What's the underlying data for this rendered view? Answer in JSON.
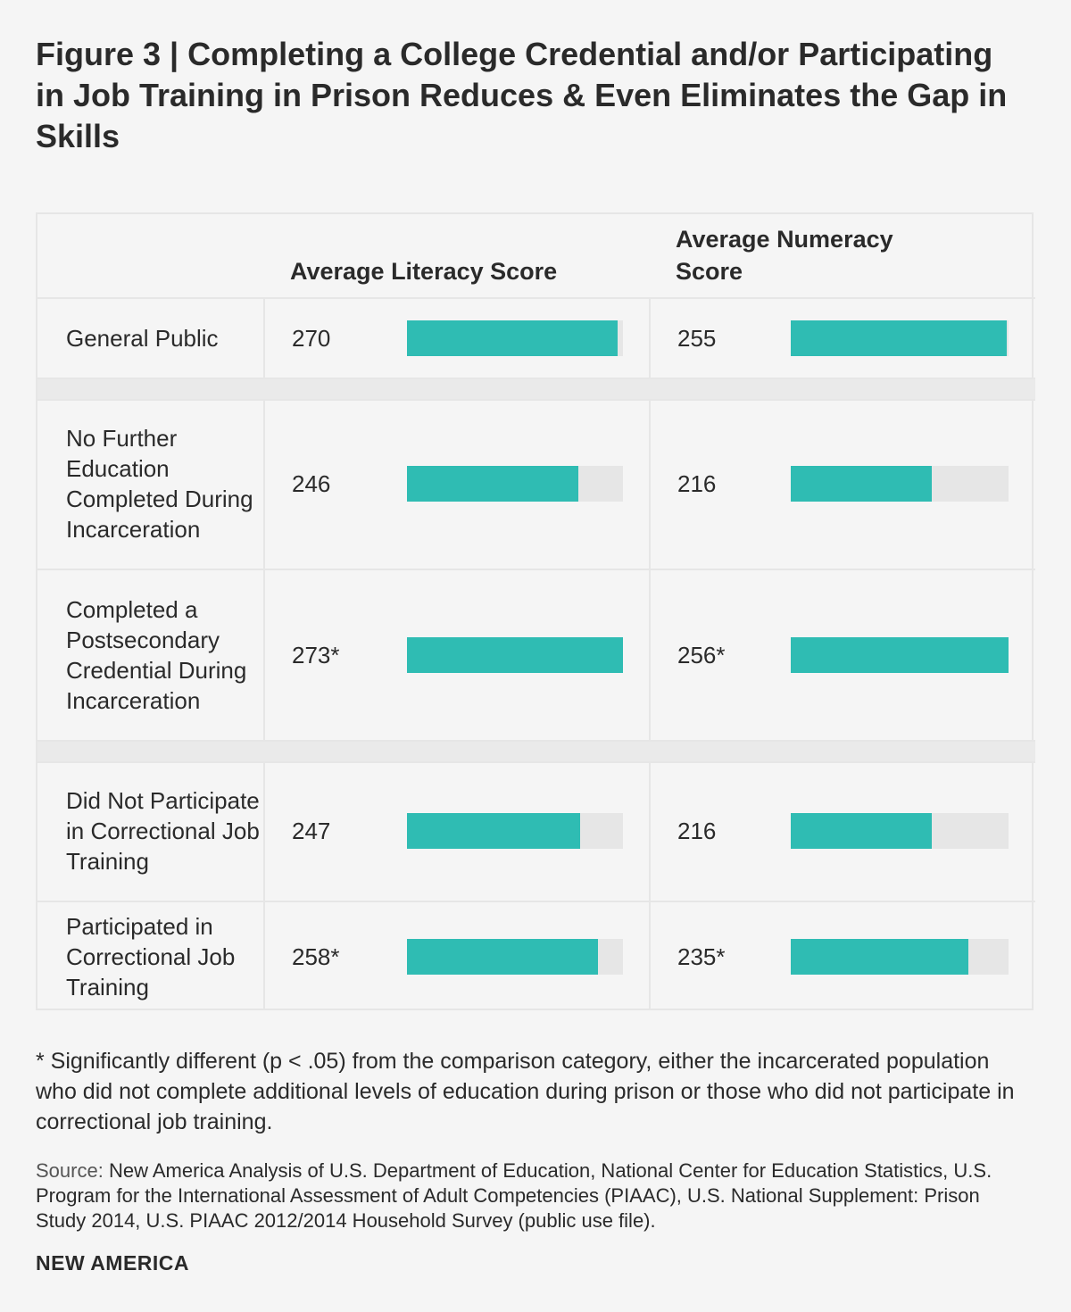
{
  "title": "Figure 3 | Completing a College Credential and/or Participating in Job Training in Prison Reduces & Even Eliminates the Gap in Skills",
  "colors": {
    "bar": "#2fbcb3",
    "track": "#e6e6e6",
    "background": "#f5f5f5"
  },
  "chart_data": {
    "type": "bar",
    "orientation": "horizontal",
    "categories": [
      "General Public",
      "No Further Education Completed During Incarceration",
      "Completed a Postsecondary Credential During Incarceration",
      "Did Not Participate in Correctional Job Training",
      "Participated in Correctional Job Training"
    ],
    "series": [
      {
        "name": "Average Literacy Score",
        "values": [
          270,
          246,
          273,
          247,
          258
        ],
        "labels": [
          "270",
          "246",
          "273*",
          "247",
          "258*"
        ],
        "max": 273
      },
      {
        "name": "Average Numeracy Score",
        "values": [
          255,
          216,
          256,
          216,
          235
        ],
        "labels": [
          "255",
          "216",
          "256*",
          "216",
          "235*"
        ],
        "max": 256
      }
    ],
    "xlim": [
      0,
      273
    ],
    "bar_baseline": 143
  },
  "footnote": "* Significantly different (p < .05) from the comparison category, either the incarcerated population who did not complete additional levels of education during prison or those who did not participate in correctional job training.",
  "source": {
    "label": "Source:",
    "text": "New America Analysis of U.S. Department of Education, National Center for Education Statistics, U.S. Program for the International Assessment of Adult Competencies (PIAAC), U.S. National Supplement: Prison Study 2014, U.S. PIAAC 2012/2014 Household Survey (public use file)."
  },
  "brand": "NEW AMERICA"
}
